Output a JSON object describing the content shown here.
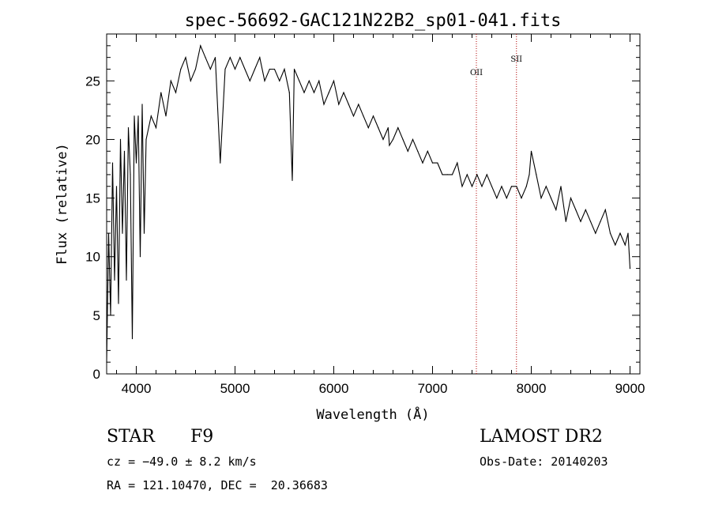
{
  "chart_data": {
    "type": "line",
    "title": "spec-56692-GAC121N22B2_sp01-041.fits",
    "xlabel": "Wavelength (Å)",
    "ylabel": "Flux (relative)",
    "xlim": [
      3700,
      9100
    ],
    "ylim": [
      0,
      29
    ],
    "xticks": [
      4000,
      5000,
      6000,
      7000,
      8000,
      9000
    ],
    "yticks": [
      0,
      5,
      10,
      15,
      20,
      25
    ],
    "grid": false,
    "series": [
      {
        "x": [
          3700,
          3720,
          3740,
          3760,
          3780,
          3800,
          3820,
          3840,
          3860,
          3880,
          3900,
          3920,
          3940,
          3960,
          3980,
          4000,
          4020,
          4040,
          4060,
          4080,
          4100,
          4150,
          4200,
          4250,
          4300,
          4350,
          4400,
          4450,
          4500,
          4550,
          4600,
          4650,
          4700,
          4750,
          4800,
          4850,
          4900,
          4950,
          5000,
          5050,
          5100,
          5150,
          5200,
          5250,
          5300,
          5350,
          5400,
          5450,
          5500,
          5550,
          5580,
          5600,
          5650,
          5700,
          5750,
          5800,
          5850,
          5900,
          5950,
          6000,
          6050,
          6100,
          6150,
          6200,
          6250,
          6300,
          6350,
          6400,
          6450,
          6500,
          6550,
          6563,
          6600,
          6650,
          6700,
          6750,
          6800,
          6850,
          6900,
          6950,
          7000,
          7050,
          7100,
          7150,
          7200,
          7250,
          7300,
          7350,
          7400,
          7450,
          7500,
          7550,
          7600,
          7650,
          7700,
          7750,
          7800,
          7850,
          7900,
          7950,
          7980,
          8000,
          8050,
          8100,
          8150,
          8200,
          8250,
          8300,
          8350,
          8400,
          8450,
          8500,
          8550,
          8600,
          8650,
          8700,
          8750,
          8800,
          8850,
          8900,
          8950,
          8980,
          9000
        ],
        "values": [
          1,
          12,
          5,
          18,
          8,
          16,
          6,
          20,
          12,
          19,
          8,
          21,
          17,
          3,
          22,
          18,
          22,
          10,
          23,
          12,
          20,
          22,
          21,
          24,
          22,
          25,
          24,
          26,
          27,
          25,
          26,
          28,
          27,
          26,
          27,
          18,
          26,
          27,
          26,
          27,
          26,
          25,
          26,
          27,
          25,
          26,
          26,
          25,
          26,
          24,
          16.5,
          26,
          25,
          24,
          25,
          24,
          25,
          23,
          24,
          25,
          23,
          24,
          23,
          22,
          23,
          22,
          21,
          22,
          21,
          20,
          21,
          19.5,
          20,
          21,
          20,
          19,
          20,
          19,
          18,
          19,
          18,
          18,
          17,
          17,
          17,
          18,
          16,
          17,
          16,
          17,
          16,
          17,
          16,
          15,
          16,
          15,
          16,
          16,
          15,
          16,
          17,
          19,
          17,
          15,
          16,
          15,
          14,
          16,
          13,
          15,
          14,
          13,
          14,
          13,
          12,
          13,
          14,
          12,
          11,
          12,
          11,
          12,
          9
        ]
      }
    ],
    "annotations": [
      {
        "label": "OII",
        "x": 7444
      },
      {
        "label": "SII",
        "x": 7850
      }
    ]
  },
  "info": {
    "object_type": "STAR",
    "subclass": "F9",
    "survey": "LAMOST DR2",
    "cz": "cz = −49.0 ± 8.2 km/s",
    "obs_date": "Obs-Date: 20140203",
    "radec": "RA = 121.10470, DEC =  20.36683"
  }
}
